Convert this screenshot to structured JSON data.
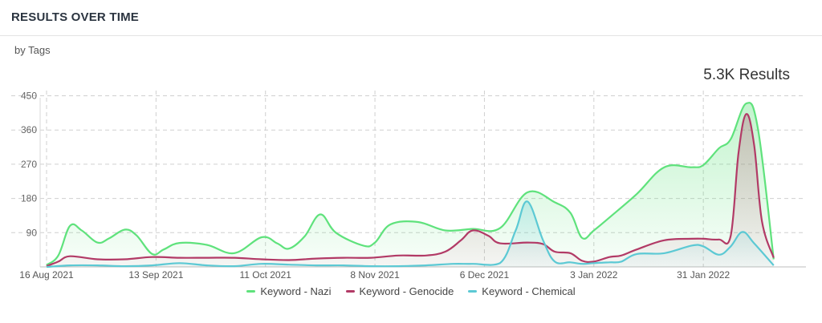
{
  "widget": {
    "title": "RESULTS OVER TIME",
    "subtitle": "by Tags",
    "total_results": "5.3K Results"
  },
  "chart_data": {
    "type": "area",
    "title": "RESULTS OVER TIME",
    "subtitle": "by Tags",
    "x_tick_labels": [
      "16 Aug 2021",
      "13 Sep 2021",
      "11 Oct 2021",
      "8 Nov 2021",
      "6 Dec 2021",
      "3 Jan 2022",
      "31 Jan 2022"
    ],
    "y_ticks": [
      90,
      180,
      270,
      360,
      450
    ],
    "ylim": [
      0,
      470
    ],
    "grid": true,
    "legend_position": "bottom",
    "series": [
      {
        "name": "Keyword - Nazi",
        "color": "#5fe27c",
        "points": [
          [
            "2021-08-16",
            5
          ],
          [
            "2021-08-19",
            30
          ],
          [
            "2021-08-22",
            108
          ],
          [
            "2021-08-25",
            96
          ],
          [
            "2021-08-29",
            64
          ],
          [
            "2021-09-01",
            75
          ],
          [
            "2021-09-05",
            98
          ],
          [
            "2021-09-08",
            83
          ],
          [
            "2021-09-12",
            34
          ],
          [
            "2021-09-15",
            46
          ],
          [
            "2021-09-19",
            63
          ],
          [
            "2021-09-26",
            58
          ],
          [
            "2021-10-03",
            36
          ],
          [
            "2021-10-10",
            78
          ],
          [
            "2021-10-14",
            62
          ],
          [
            "2021-10-17",
            48
          ],
          [
            "2021-10-21",
            80
          ],
          [
            "2021-10-25",
            138
          ],
          [
            "2021-10-29",
            90
          ],
          [
            "2021-11-05",
            56
          ],
          [
            "2021-11-08",
            64
          ],
          [
            "2021-11-12",
            112
          ],
          [
            "2021-11-19",
            118
          ],
          [
            "2021-11-26",
            96
          ],
          [
            "2021-12-03",
            100
          ],
          [
            "2021-12-10",
            102
          ],
          [
            "2021-12-17",
            196
          ],
          [
            "2021-12-24",
            170
          ],
          [
            "2021-12-28",
            142
          ],
          [
            "2021-12-31",
            76
          ],
          [
            "2022-01-03",
            96
          ],
          [
            "2022-01-07",
            130
          ],
          [
            "2022-01-14",
            192
          ],
          [
            "2022-01-21",
            262
          ],
          [
            "2022-01-28",
            262
          ],
          [
            "2022-01-31",
            268
          ],
          [
            "2022-02-04",
            312
          ],
          [
            "2022-02-07",
            336
          ],
          [
            "2022-02-11",
            430
          ],
          [
            "2022-02-14",
            362
          ],
          [
            "2022-02-18",
            20
          ]
        ]
      },
      {
        "name": "Keyword - Genocide",
        "color": "#b23a66",
        "points": [
          [
            "2021-08-16",
            2
          ],
          [
            "2021-08-19",
            14
          ],
          [
            "2021-08-22",
            28
          ],
          [
            "2021-08-29",
            20
          ],
          [
            "2021-09-05",
            20
          ],
          [
            "2021-09-12",
            26
          ],
          [
            "2021-09-19",
            24
          ],
          [
            "2021-09-26",
            24
          ],
          [
            "2021-10-03",
            24
          ],
          [
            "2021-10-10",
            20
          ],
          [
            "2021-10-17",
            18
          ],
          [
            "2021-10-24",
            22
          ],
          [
            "2021-10-31",
            24
          ],
          [
            "2021-11-07",
            24
          ],
          [
            "2021-11-14",
            30
          ],
          [
            "2021-11-21",
            30
          ],
          [
            "2021-11-26",
            40
          ],
          [
            "2021-11-30",
            70
          ],
          [
            "2021-12-03",
            96
          ],
          [
            "2021-12-07",
            82
          ],
          [
            "2021-12-10",
            62
          ],
          [
            "2021-12-17",
            64
          ],
          [
            "2021-12-21",
            60
          ],
          [
            "2021-12-24",
            40
          ],
          [
            "2021-12-28",
            36
          ],
          [
            "2021-12-31",
            16
          ],
          [
            "2022-01-03",
            14
          ],
          [
            "2022-01-07",
            26
          ],
          [
            "2022-01-10",
            30
          ],
          [
            "2022-01-14",
            46
          ],
          [
            "2022-01-21",
            70
          ],
          [
            "2022-01-28",
            74
          ],
          [
            "2022-01-31",
            74
          ],
          [
            "2022-02-04",
            72
          ],
          [
            "2022-02-07",
            82
          ],
          [
            "2022-02-09",
            300
          ],
          [
            "2022-02-11",
            402
          ],
          [
            "2022-02-13",
            320
          ],
          [
            "2022-02-15",
            120
          ],
          [
            "2022-02-18",
            24
          ]
        ]
      },
      {
        "name": "Keyword - Chemical",
        "color": "#5cc9d4",
        "points": [
          [
            "2021-08-16",
            0
          ],
          [
            "2021-08-22",
            4
          ],
          [
            "2021-08-29",
            4
          ],
          [
            "2021-09-05",
            2
          ],
          [
            "2021-09-12",
            4
          ],
          [
            "2021-09-19",
            10
          ],
          [
            "2021-09-26",
            4
          ],
          [
            "2021-10-03",
            2
          ],
          [
            "2021-10-10",
            8
          ],
          [
            "2021-10-17",
            6
          ],
          [
            "2021-10-24",
            4
          ],
          [
            "2021-10-31",
            4
          ],
          [
            "2021-11-07",
            2
          ],
          [
            "2021-11-14",
            2
          ],
          [
            "2021-11-21",
            4
          ],
          [
            "2021-11-28",
            8
          ],
          [
            "2021-12-03",
            8
          ],
          [
            "2021-12-10",
            10
          ],
          [
            "2021-12-14",
            96
          ],
          [
            "2021-12-17",
            172
          ],
          [
            "2021-12-21",
            70
          ],
          [
            "2021-12-24",
            14
          ],
          [
            "2021-12-28",
            12
          ],
          [
            "2021-12-31",
            8
          ],
          [
            "2022-01-03",
            10
          ],
          [
            "2022-01-07",
            12
          ],
          [
            "2022-01-10",
            14
          ],
          [
            "2022-01-14",
            34
          ],
          [
            "2022-01-21",
            36
          ],
          [
            "2022-01-28",
            56
          ],
          [
            "2022-01-31",
            54
          ],
          [
            "2022-02-04",
            32
          ],
          [
            "2022-02-07",
            54
          ],
          [
            "2022-02-10",
            92
          ],
          [
            "2022-02-13",
            62
          ],
          [
            "2022-02-18",
            4
          ]
        ]
      }
    ]
  }
}
